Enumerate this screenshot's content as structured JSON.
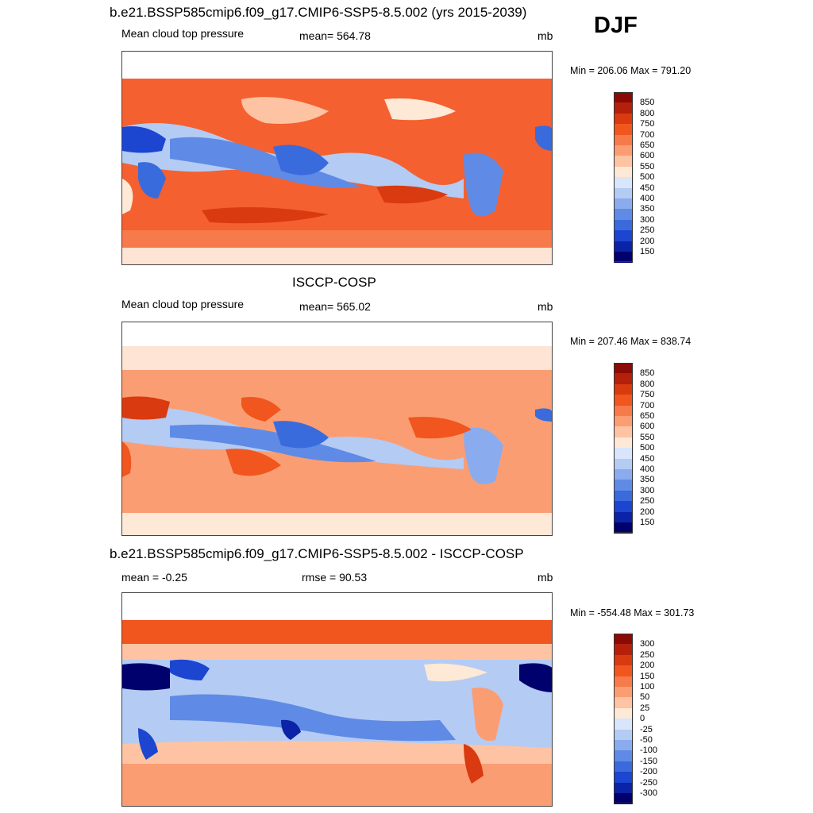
{
  "season": "DJF",
  "panels": [
    {
      "title": "b.e21.BSSP585cmip6.f09_g17.CMIP6-SSP5-8.5.002 (yrs 2015-2039)",
      "left_label": "Mean cloud top pressure",
      "center_label": "mean= 564.78",
      "unit": "mb",
      "minmax": "Min = 206.06 Max = 791.20",
      "colorbar": {
        "levels": [
          "850",
          "800",
          "750",
          "700",
          "650",
          "600",
          "550",
          "500",
          "450",
          "400",
          "350",
          "300",
          "250",
          "200",
          "150"
        ],
        "colors": [
          "#8a0b05",
          "#b5200a",
          "#d93a10",
          "#f0561e",
          "#f77a4a",
          "#fb9d73",
          "#fdc3a2",
          "#fee8d6",
          "#d8e5fa",
          "#b4cbf4",
          "#8aacee",
          "#5f8be6",
          "#3a6bdc",
          "#1c46d0",
          "#0b23a6",
          "#01016e"
        ]
      },
      "chart_data": {
        "type": "heatmap",
        "title": "b.e21.BSSP585cmip6.f09_g17.CMIP6-SSP5-8.5.002 (yrs 2015-2039)",
        "variable": "Mean cloud top pressure",
        "unit": "mb",
        "mean": 564.78,
        "min": 206.06,
        "max": 791.2
      }
    },
    {
      "title": "ISCCP-COSP",
      "left_label": "Mean cloud top pressure",
      "center_label": "mean= 565.02",
      "unit": "mb",
      "minmax": "Min = 207.46 Max = 838.74",
      "colorbar": {
        "levels": [
          "850",
          "800",
          "750",
          "700",
          "650",
          "600",
          "550",
          "500",
          "450",
          "400",
          "350",
          "300",
          "250",
          "200",
          "150"
        ],
        "colors": [
          "#8a0b05",
          "#b5200a",
          "#d93a10",
          "#f0561e",
          "#f77a4a",
          "#fb9d73",
          "#fdc3a2",
          "#fee8d6",
          "#d8e5fa",
          "#b4cbf4",
          "#8aacee",
          "#5f8be6",
          "#3a6bdc",
          "#1c46d0",
          "#0b23a6",
          "#01016e"
        ]
      },
      "chart_data": {
        "type": "heatmap",
        "title": "ISCCP-COSP",
        "variable": "Mean cloud top pressure",
        "unit": "mb",
        "mean": 565.02,
        "min": 207.46,
        "max": 838.74
      }
    },
    {
      "title": "b.e21.BSSP585cmip6.f09_g17.CMIP6-SSP5-8.5.002 - ISCCP-COSP",
      "left_label": "mean =  -0.25",
      "center_label": "rmse =  90.53",
      "unit": "mb",
      "minmax": "Min = -554.48 Max = 301.73",
      "colorbar": {
        "levels": [
          "300",
          "250",
          "200",
          "150",
          "100",
          "50",
          "25",
          "0",
          "-25",
          "-50",
          "-100",
          "-150",
          "-200",
          "-250",
          "-300"
        ],
        "colors": [
          "#8a0b05",
          "#b5200a",
          "#d93a10",
          "#f0561e",
          "#f77a4a",
          "#fb9d73",
          "#fdc3a2",
          "#fee8d6",
          "#d8e5fa",
          "#b4cbf4",
          "#8aacee",
          "#5f8be6",
          "#3a6bdc",
          "#1c46d0",
          "#0b23a6",
          "#01016e"
        ]
      },
      "chart_data": {
        "type": "heatmap",
        "title": "b.e21.BSSP585cmip6.f09_g17.CMIP6-SSP5-8.5.002 - ISCCP-COSP",
        "unit": "mb",
        "mean": -0.25,
        "rmse": 90.53,
        "min": -554.48,
        "max": 301.73
      }
    }
  ]
}
